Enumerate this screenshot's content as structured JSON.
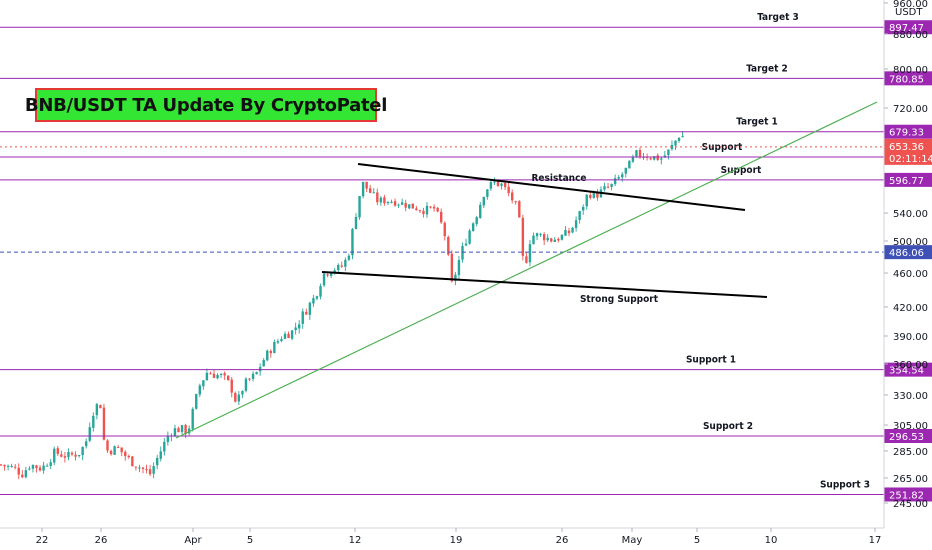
{
  "chart_data": {
    "type": "candlestick",
    "title": "BNB/USDT TA Update By CryptoPatel",
    "currency_label": "USDT",
    "y_ticks": [
      960.0,
      880.0,
      800.0,
      720.0,
      540.0,
      500.0,
      460.0,
      420.0,
      390.0,
      360.0,
      330.0,
      305.0,
      285.0,
      265.0,
      245.0
    ],
    "x_ticks": [
      "22",
      "26",
      "Apr",
      "5",
      "12",
      "19",
      "26",
      "May",
      "5",
      "10",
      "17"
    ],
    "current_price": "653.36",
    "countdown": "02:11:14",
    "levels": [
      {
        "label": "Target 3",
        "value": "897.47"
      },
      {
        "label": "Target 2",
        "value": "780.85"
      },
      {
        "label": "Target 1",
        "value": "679.33"
      },
      {
        "label": "Support",
        "value": "636.05"
      },
      {
        "label": "Support",
        "value": "596.77"
      },
      {
        "label": "",
        "value": "486.06"
      },
      {
        "label": "Support 1",
        "value": "354.54"
      },
      {
        "label": "Support 2",
        "value": "296.53"
      },
      {
        "label": "Support 3",
        "value": "251.82"
      }
    ],
    "trendline_labels": {
      "resistance": "Resistance",
      "strong_support": "Strong Support"
    },
    "colors": {
      "up": "#26a69a",
      "down": "#ef5350",
      "level_line": "#9c27b0",
      "trend_green": "#4caf50",
      "current_price": "#ef5350",
      "title_bg": "#33e634",
      "title_border": "#e53935"
    }
  }
}
